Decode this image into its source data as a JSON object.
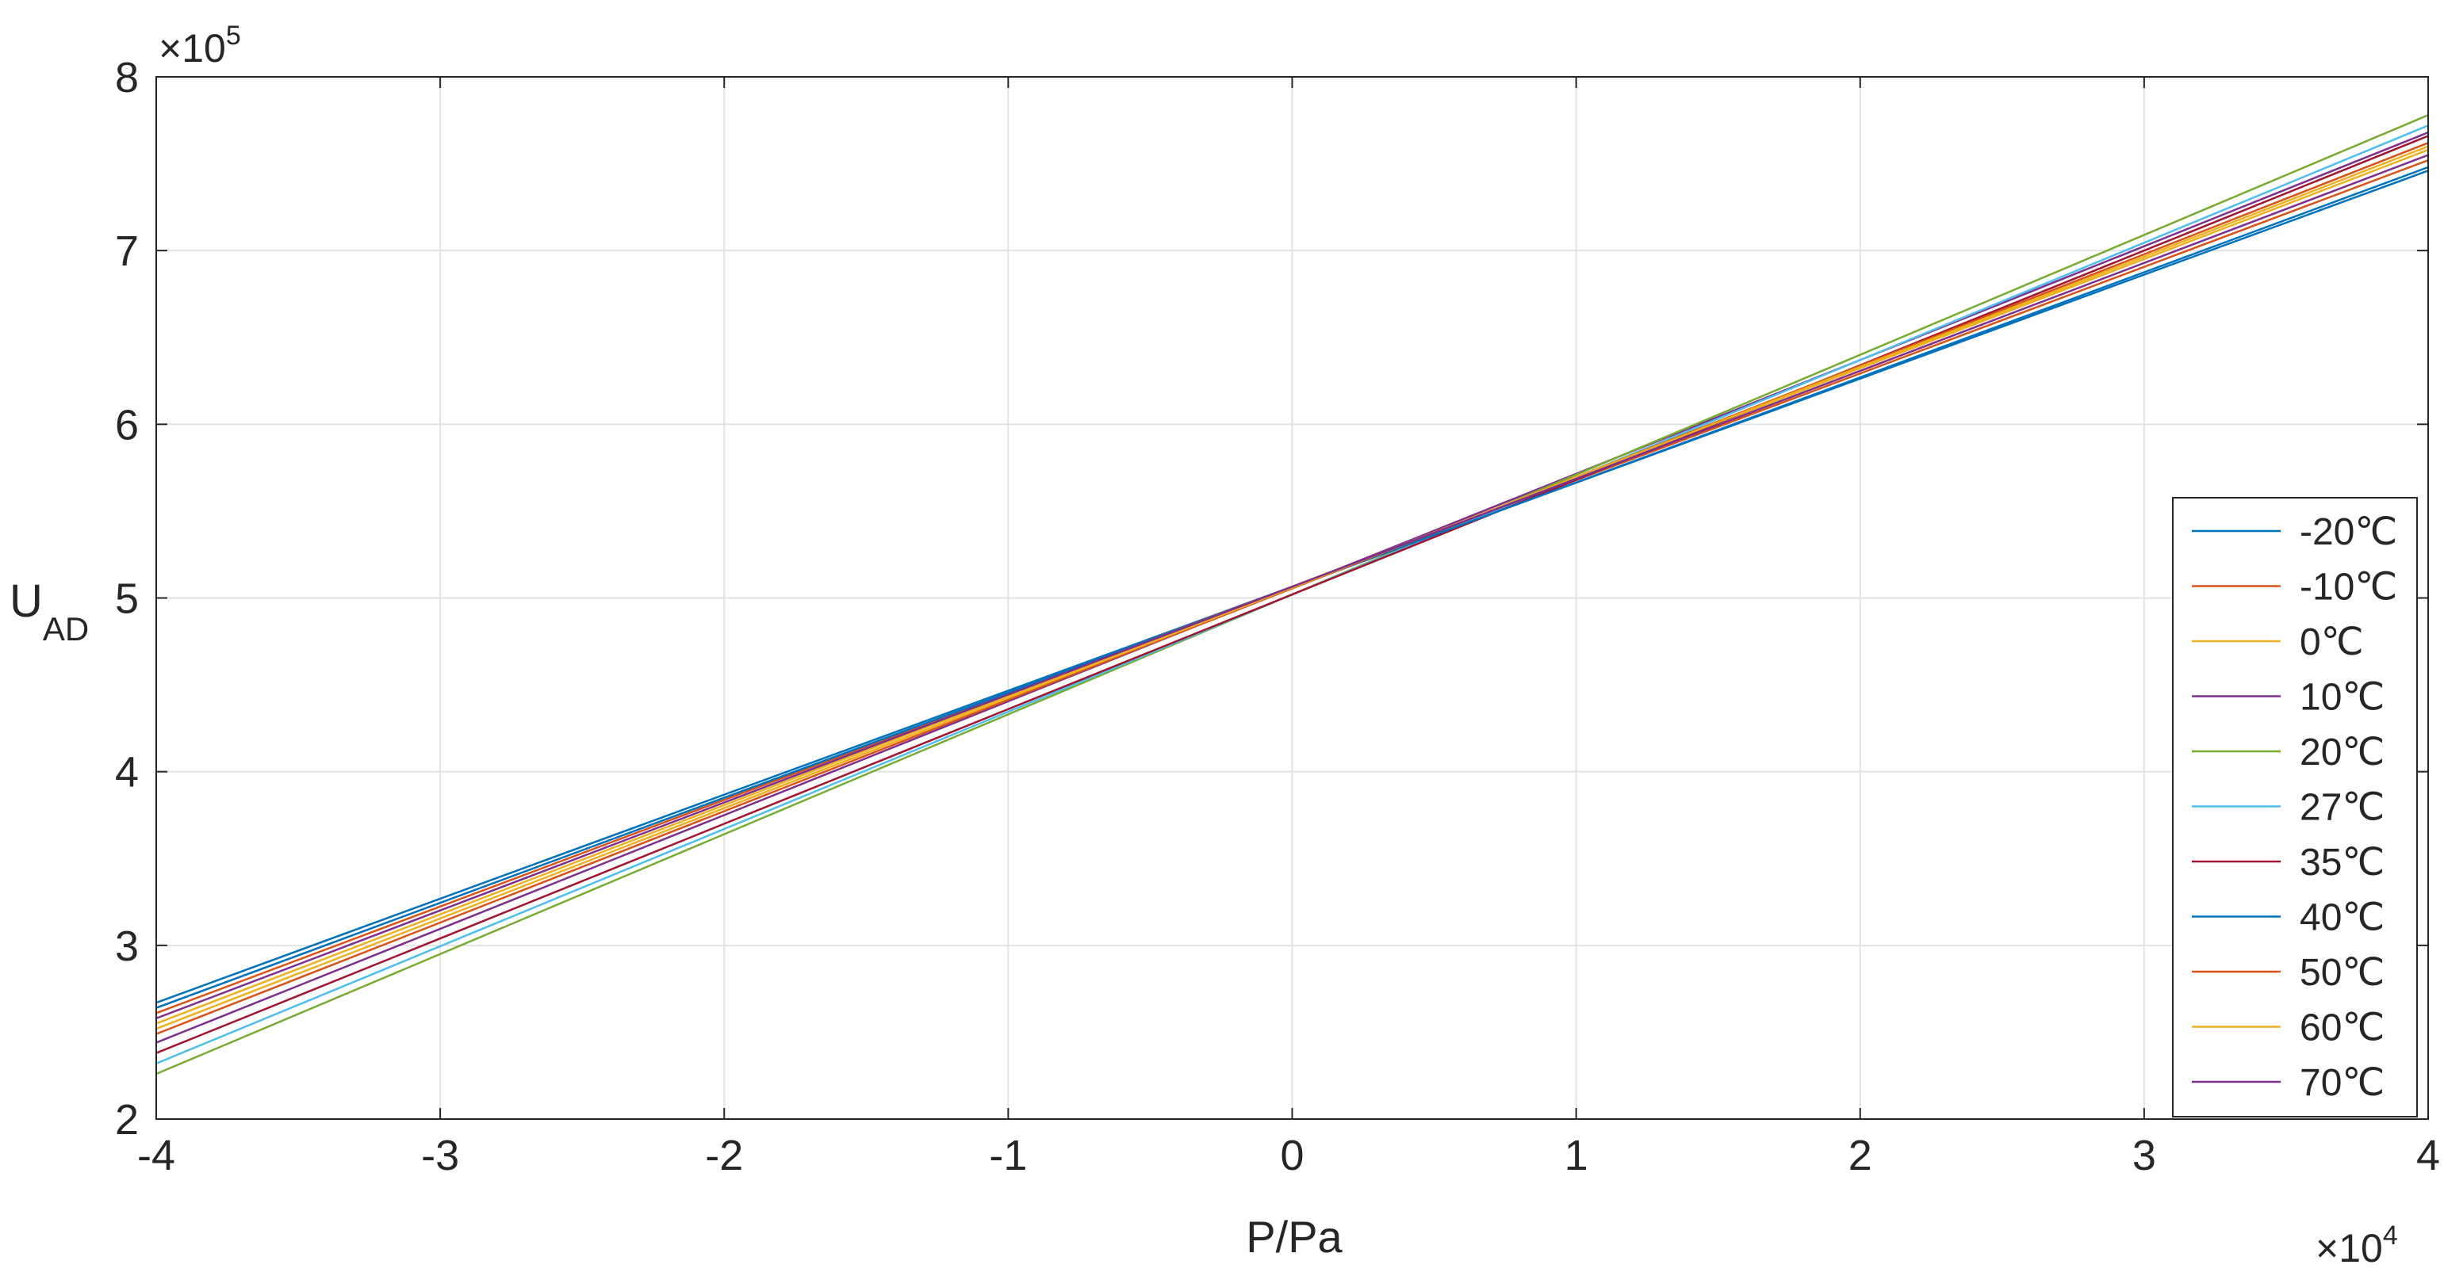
{
  "chart_data": {
    "type": "line",
    "title": "",
    "xlabel": "P/Pa",
    "ylabel_main": "U",
    "ylabel_sub": "AD",
    "x_multiplier": "×10",
    "x_multiplier_exp": "4",
    "y_multiplier": "×10",
    "y_multiplier_exp": "5",
    "xlim": [
      -4,
      4
    ],
    "ylim": [
      2,
      8
    ],
    "x_ticks": [
      -4,
      -3,
      -2,
      -1,
      0,
      1,
      2,
      3,
      4
    ],
    "y_ticks": [
      2,
      3,
      4,
      5,
      6,
      7,
      8
    ],
    "x_tick_labels": [
      "-4",
      "-3",
      "-2",
      "-1",
      "0",
      "1",
      "2",
      "3",
      "4"
    ],
    "y_tick_labels": [
      "2",
      "3",
      "4",
      "5",
      "6",
      "7",
      "8"
    ],
    "grid": true,
    "legend_position": "lower-right",
    "series": [
      {
        "name": "-20℃",
        "color": "#0072BD",
        "x": [
          -4,
          4
        ],
        "y": [
          2.67,
          7.46
        ]
      },
      {
        "name": "-10℃",
        "color": "#D95319",
        "x": [
          -4,
          4
        ],
        "y": [
          2.61,
          7.52
        ]
      },
      {
        "name": "0℃",
        "color": "#EDB120",
        "x": [
          -4,
          4
        ],
        "y": [
          2.55,
          7.58
        ]
      },
      {
        "name": "10℃",
        "color": "#7E2F8E",
        "x": [
          -4,
          4
        ],
        "y": [
          2.44,
          7.68
        ]
      },
      {
        "name": "20℃",
        "color": "#77AC30",
        "x": [
          -4,
          4
        ],
        "y": [
          2.26,
          7.78
        ]
      },
      {
        "name": "27℃",
        "color": "#4DBEEE",
        "x": [
          -4,
          4
        ],
        "y": [
          2.32,
          7.72
        ]
      },
      {
        "name": "35℃",
        "color": "#A2142F",
        "x": [
          -4,
          4
        ],
        "y": [
          2.38,
          7.66
        ]
      },
      {
        "name": "40℃",
        "color": "#0072BD",
        "x": [
          -4,
          4
        ],
        "y": [
          2.64,
          7.48
        ]
      },
      {
        "name": "50℃",
        "color": "#D95319",
        "x": [
          -4,
          4
        ],
        "y": [
          2.49,
          7.62
        ]
      },
      {
        "name": "60℃",
        "color": "#EDB120",
        "x": [
          -4,
          4
        ],
        "y": [
          2.52,
          7.6
        ]
      },
      {
        "name": "70℃",
        "color": "#7E2F8E",
        "x": [
          -4,
          4
        ],
        "y": [
          2.58,
          7.55
        ]
      }
    ]
  }
}
